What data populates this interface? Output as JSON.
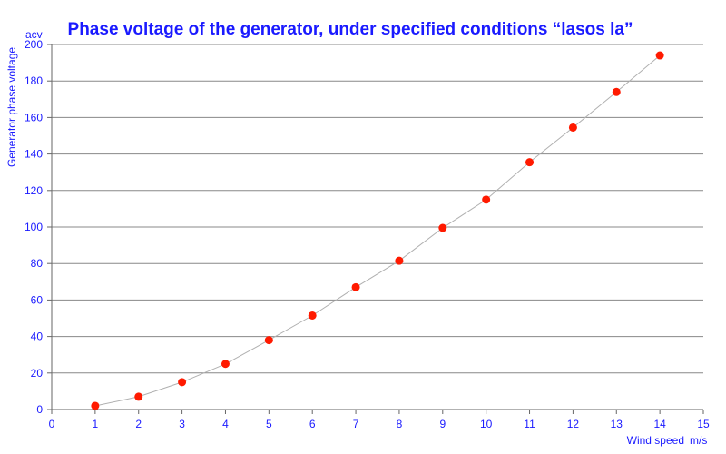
{
  "colors": {
    "text": "#1a1aff",
    "grid": "#888888",
    "axis": "#666666",
    "curve": "#b0b0b0",
    "marker": "#ff1a00"
  },
  "chart_data": {
    "type": "scatter",
    "title": "Phase voltage of the generator, under specified conditions “lasos la”",
    "ylabel": "Generator phase voltage",
    "yunit": "acv",
    "xlabel": "Wind speed",
    "xunit": "m/s",
    "xlim": [
      0,
      15
    ],
    "ylim": [
      0,
      200
    ],
    "xticks": [
      "0",
      "1",
      "2",
      "3",
      "4",
      "5",
      "6",
      "7",
      "8",
      "9",
      "10",
      "11",
      "12",
      "13",
      "14",
      "15"
    ],
    "yticks": [
      "0",
      "20",
      "40",
      "60",
      "80",
      "100",
      "120",
      "140",
      "160",
      "180",
      "200"
    ],
    "grid": true,
    "legend": "none",
    "series": [
      {
        "x": [
          1,
          2,
          3,
          4,
          5,
          6,
          7,
          8,
          9,
          10,
          11,
          12,
          13,
          14
        ],
        "y": [
          2,
          7,
          15,
          25,
          38,
          51.5,
          67,
          81.5,
          99.5,
          115,
          135.5,
          154.5,
          174,
          194
        ]
      }
    ]
  }
}
